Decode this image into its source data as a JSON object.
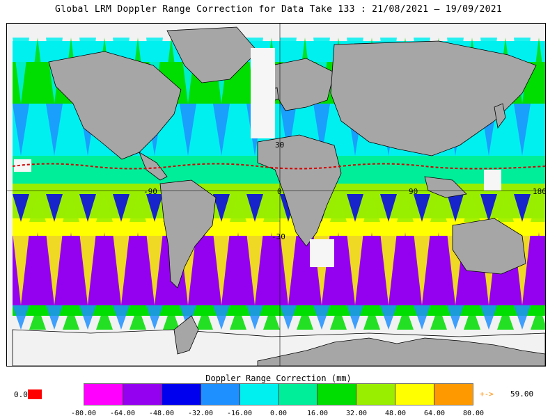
{
  "title": "Global LRM Doppler Range Correction for Data Take 133 : 21/08/2021 – 19/09/2021",
  "map": {
    "lon_labels": [
      "-90",
      "0",
      "90",
      "180"
    ],
    "lat_labels": [
      "30",
      "-30"
    ],
    "colors": {
      "land": "#a6a6a6",
      "ice": "#f0f0f0",
      "coast": "#000000",
      "graticule": "#000000",
      "zero_line": "#d40000"
    }
  },
  "legend": {
    "title": "Doppler Range Correction (mm)",
    "tick_labels": [
      "-80.00",
      "-64.00",
      "-48.00",
      "-32.00",
      "-16.00",
      "0.00",
      "16.00",
      "32.00",
      "48.00",
      "64.00",
      "80.00"
    ],
    "bins": [
      {
        "color": "#ff00ff"
      },
      {
        "color": "#9400f0"
      },
      {
        "color": "#0000ee"
      },
      {
        "color": "#1e90ff"
      },
      {
        "color": "#00f0f0"
      },
      {
        "color": "#00ee99"
      },
      {
        "color": "#00dd00"
      },
      {
        "color": "#99ee00"
      },
      {
        "color": "#ffff00"
      },
      {
        "color": "#ff9900"
      }
    ],
    "min_value": "0.0",
    "min_color": "#ff0000",
    "over_arrow": "+->",
    "over_value": "59.00",
    "over_color": "#ff8c00"
  }
}
